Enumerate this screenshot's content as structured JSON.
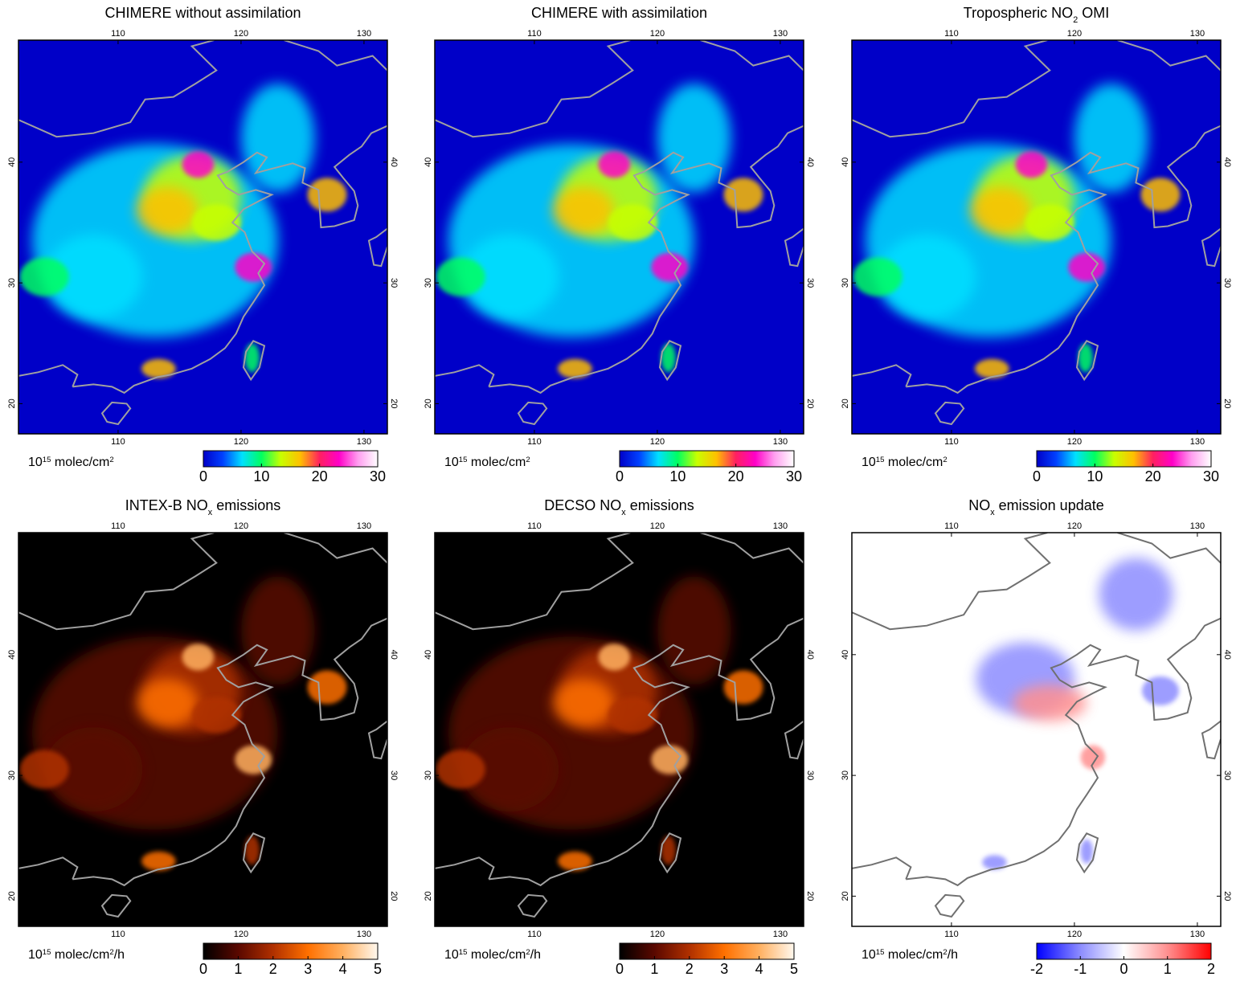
{
  "chart_data": [
    {
      "type": "map",
      "title": [
        {
          "text": "CHIMERE without assimilation"
        }
      ],
      "xlim": [
        101.9,
        131.9
      ],
      "ylim": [
        17.5,
        50.1
      ],
      "xticks": [
        110,
        120,
        130
      ],
      "yticks": [
        20,
        30,
        40
      ],
      "colorbar_label": [
        {
          "text": "10"
        },
        {
          "sup": "15"
        },
        {
          "text": " molec/cm"
        },
        {
          "sup": "2"
        }
      ],
      "clim": [
        0,
        30
      ],
      "cticks": [
        0,
        10,
        20,
        30
      ],
      "colormap": [
        "#0000c8",
        "#0040ff",
        "#00e0ff",
        "#00ff60",
        "#c8ff00",
        "#ffc000",
        "#ff2060",
        "#ff00c8",
        "#ffa0f0",
        "#ffffff"
      ]
    },
    {
      "type": "map",
      "title": [
        {
          "text": "CHIMERE with assimilation"
        }
      ],
      "xlim": [
        101.9,
        131.9
      ],
      "ylim": [
        17.5,
        50.1
      ],
      "xticks": [
        110,
        120,
        130
      ],
      "yticks": [
        20,
        30,
        40
      ],
      "colorbar_label": [
        {
          "text": "10"
        },
        {
          "sup": "15"
        },
        {
          "text": " molec/cm"
        },
        {
          "sup": "2"
        }
      ],
      "clim": [
        0,
        30
      ],
      "cticks": [
        0,
        10,
        20,
        30
      ],
      "colormap": [
        "#0000c8",
        "#0040ff",
        "#00e0ff",
        "#00ff60",
        "#c8ff00",
        "#ffc000",
        "#ff2060",
        "#ff00c8",
        "#ffa0f0",
        "#ffffff"
      ]
    },
    {
      "type": "map",
      "title": [
        {
          "text": "Tropospheric NO"
        },
        {
          "sub": "2"
        },
        {
          "text": " OMI"
        }
      ],
      "xlim": [
        101.9,
        131.9
      ],
      "ylim": [
        17.5,
        50.1
      ],
      "xticks": [
        110,
        120,
        130
      ],
      "yticks": [
        20,
        30,
        40
      ],
      "colorbar_label": [
        {
          "text": "10"
        },
        {
          "sup": "15"
        },
        {
          "text": " molec/cm"
        },
        {
          "sup": "2"
        }
      ],
      "clim": [
        0,
        30
      ],
      "cticks": [
        0,
        10,
        20,
        30
      ],
      "colormap": [
        "#0000c8",
        "#0040ff",
        "#00e0ff",
        "#00ff60",
        "#c8ff00",
        "#ffc000",
        "#ff2060",
        "#ff00c8",
        "#ffa0f0",
        "#ffffff"
      ]
    },
    {
      "type": "map",
      "title": [
        {
          "text": "INTEX-B NO"
        },
        {
          "sub": "x"
        },
        {
          "text": " emissions"
        }
      ],
      "xlim": [
        101.9,
        131.9
      ],
      "ylim": [
        17.5,
        50.1
      ],
      "xticks": [
        110,
        120,
        130
      ],
      "yticks": [
        20,
        30,
        40
      ],
      "colorbar_label": [
        {
          "text": "10"
        },
        {
          "sup": "15"
        },
        {
          "text": " molec/cm"
        },
        {
          "sup": "2"
        },
        {
          "text": "/h"
        }
      ],
      "clim": [
        0,
        5
      ],
      "cticks": [
        0,
        1,
        2,
        3,
        4,
        5
      ],
      "colormap": [
        "#000000",
        "#5a0800",
        "#b03000",
        "#ff7000",
        "#ffb060",
        "#fff8ee"
      ]
    },
    {
      "type": "map",
      "title": [
        {
          "text": "DECSO NO"
        },
        {
          "sub": "x"
        },
        {
          "text": " emissions"
        }
      ],
      "xlim": [
        101.9,
        131.9
      ],
      "ylim": [
        17.5,
        50.1
      ],
      "xticks": [
        110,
        120,
        130
      ],
      "yticks": [
        20,
        30,
        40
      ],
      "colorbar_label": [
        {
          "text": "10"
        },
        {
          "sup": "15"
        },
        {
          "text": " molec/cm"
        },
        {
          "sup": "2"
        },
        {
          "text": "/h"
        }
      ],
      "clim": [
        0,
        5
      ],
      "cticks": [
        0,
        1,
        2,
        3,
        4,
        5
      ],
      "colormap": [
        "#000000",
        "#5a0800",
        "#b03000",
        "#ff7000",
        "#ffb060",
        "#fff8ee"
      ]
    },
    {
      "type": "map",
      "title": [
        {
          "text": "NO"
        },
        {
          "sub": "x"
        },
        {
          "text": " emission update"
        }
      ],
      "xlim": [
        101.9,
        131.9
      ],
      "ylim": [
        17.5,
        50.1
      ],
      "xticks": [
        110,
        120,
        130
      ],
      "yticks": [
        20,
        30,
        40
      ],
      "colorbar_label": [
        {
          "text": "10"
        },
        {
          "sup": "15"
        },
        {
          "text": " molec/cm"
        },
        {
          "sup": "2"
        },
        {
          "text": "/h"
        }
      ],
      "clim": [
        -2,
        2
      ],
      "cticks": [
        -2,
        -1,
        0,
        1,
        2
      ],
      "colormap": [
        "#0000ff",
        "#8c8cff",
        "#ffffff",
        "#ff9090",
        "#ff0000"
      ]
    }
  ]
}
